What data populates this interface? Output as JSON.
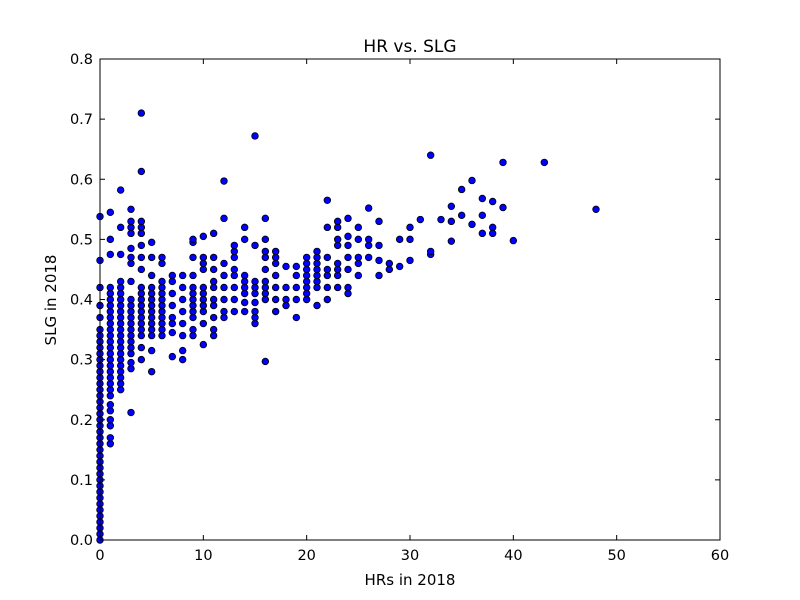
{
  "chart_data": {
    "type": "scatter",
    "title": "HR vs. SLG",
    "xlabel": "HRs in 2018",
    "ylabel": "SLG in 2018",
    "xlim": [
      0,
      60
    ],
    "ylim": [
      0,
      0.8
    ],
    "xticks": [
      "0",
      "10",
      "20",
      "30",
      "40",
      "50",
      "60"
    ],
    "yticks": [
      "0.0",
      "0.1",
      "0.2",
      "0.3",
      "0.4",
      "0.5",
      "0.6",
      "0.7",
      "0.8"
    ],
    "grid": false,
    "legend": "none",
    "marker_color": "#0000ff",
    "marker_edge_color": "#000000",
    "points": [
      [
        0,
        0.0
      ],
      [
        0,
        0.01
      ],
      [
        0,
        0.02
      ],
      [
        0,
        0.03
      ],
      [
        0,
        0.04
      ],
      [
        0,
        0.05
      ],
      [
        0,
        0.06
      ],
      [
        0,
        0.07
      ],
      [
        0,
        0.08
      ],
      [
        0,
        0.09
      ],
      [
        0,
        0.1
      ],
      [
        0,
        0.11
      ],
      [
        0,
        0.12
      ],
      [
        0,
        0.13
      ],
      [
        0,
        0.14
      ],
      [
        0,
        0.15
      ],
      [
        0,
        0.16
      ],
      [
        0,
        0.17
      ],
      [
        0,
        0.18
      ],
      [
        0,
        0.19
      ],
      [
        0,
        0.2
      ],
      [
        0,
        0.21
      ],
      [
        0,
        0.22
      ],
      [
        0,
        0.23
      ],
      [
        0,
        0.24
      ],
      [
        0,
        0.25
      ],
      [
        0,
        0.26
      ],
      [
        0,
        0.27
      ],
      [
        0,
        0.28
      ],
      [
        0,
        0.29
      ],
      [
        0,
        0.3
      ],
      [
        0,
        0.31
      ],
      [
        0,
        0.32
      ],
      [
        0,
        0.33
      ],
      [
        0,
        0.34
      ],
      [
        0,
        0.35
      ],
      [
        0,
        0.37
      ],
      [
        0,
        0.39
      ],
      [
        0,
        0.42
      ],
      [
        0,
        0.465
      ],
      [
        0,
        0.538
      ],
      [
        1,
        0.16
      ],
      [
        1,
        0.17
      ],
      [
        1,
        0.19
      ],
      [
        1,
        0.2
      ],
      [
        1,
        0.215
      ],
      [
        1,
        0.225
      ],
      [
        1,
        0.24
      ],
      [
        1,
        0.25
      ],
      [
        1,
        0.26
      ],
      [
        1,
        0.27
      ],
      [
        1,
        0.28
      ],
      [
        1,
        0.29
      ],
      [
        1,
        0.3
      ],
      [
        1,
        0.31
      ],
      [
        1,
        0.32
      ],
      [
        1,
        0.33
      ],
      [
        1,
        0.34
      ],
      [
        1,
        0.35
      ],
      [
        1,
        0.36
      ],
      [
        1,
        0.37
      ],
      [
        1,
        0.38
      ],
      [
        1,
        0.39
      ],
      [
        1,
        0.4
      ],
      [
        1,
        0.41
      ],
      [
        1,
        0.42
      ],
      [
        1,
        0.475
      ],
      [
        1,
        0.5
      ],
      [
        1,
        0.545
      ],
      [
        2,
        0.25
      ],
      [
        2,
        0.26
      ],
      [
        2,
        0.27
      ],
      [
        2,
        0.28
      ],
      [
        2,
        0.29
      ],
      [
        2,
        0.3
      ],
      [
        2,
        0.31
      ],
      [
        2,
        0.32
      ],
      [
        2,
        0.33
      ],
      [
        2,
        0.34
      ],
      [
        2,
        0.35
      ],
      [
        2,
        0.36
      ],
      [
        2,
        0.37
      ],
      [
        2,
        0.38
      ],
      [
        2,
        0.39
      ],
      [
        2,
        0.4
      ],
      [
        2,
        0.41
      ],
      [
        2,
        0.42
      ],
      [
        2,
        0.43
      ],
      [
        2,
        0.475
      ],
      [
        2,
        0.52
      ],
      [
        2,
        0.582
      ],
      [
        3,
        0.212
      ],
      [
        3,
        0.285
      ],
      [
        3,
        0.295
      ],
      [
        3,
        0.31
      ],
      [
        3,
        0.32
      ],
      [
        3,
        0.33
      ],
      [
        3,
        0.34
      ],
      [
        3,
        0.35
      ],
      [
        3,
        0.36
      ],
      [
        3,
        0.37
      ],
      [
        3,
        0.38
      ],
      [
        3,
        0.39
      ],
      [
        3,
        0.4
      ],
      [
        3,
        0.43
      ],
      [
        3,
        0.46
      ],
      [
        3,
        0.47
      ],
      [
        3,
        0.485
      ],
      [
        3,
        0.51
      ],
      [
        3,
        0.52
      ],
      [
        3,
        0.53
      ],
      [
        3,
        0.55
      ],
      [
        4,
        0.3
      ],
      [
        4,
        0.32
      ],
      [
        4,
        0.34
      ],
      [
        4,
        0.35
      ],
      [
        4,
        0.36
      ],
      [
        4,
        0.37
      ],
      [
        4,
        0.38
      ],
      [
        4,
        0.39
      ],
      [
        4,
        0.4
      ],
      [
        4,
        0.41
      ],
      [
        4,
        0.42
      ],
      [
        4,
        0.45
      ],
      [
        4,
        0.47
      ],
      [
        4,
        0.49
      ],
      [
        4,
        0.51
      ],
      [
        4,
        0.52
      ],
      [
        4,
        0.53
      ],
      [
        4,
        0.613
      ],
      [
        4,
        0.71
      ],
      [
        5,
        0.28
      ],
      [
        5,
        0.315
      ],
      [
        5,
        0.34
      ],
      [
        5,
        0.35
      ],
      [
        5,
        0.36
      ],
      [
        5,
        0.37
      ],
      [
        5,
        0.38
      ],
      [
        5,
        0.39
      ],
      [
        5,
        0.4
      ],
      [
        5,
        0.41
      ],
      [
        5,
        0.42
      ],
      [
        5,
        0.44
      ],
      [
        5,
        0.47
      ],
      [
        5,
        0.495
      ],
      [
        6,
        0.34
      ],
      [
        6,
        0.35
      ],
      [
        6,
        0.36
      ],
      [
        6,
        0.37
      ],
      [
        6,
        0.38
      ],
      [
        6,
        0.39
      ],
      [
        6,
        0.4
      ],
      [
        6,
        0.41
      ],
      [
        6,
        0.42
      ],
      [
        6,
        0.43
      ],
      [
        6,
        0.46
      ],
      [
        6,
        0.47
      ],
      [
        7,
        0.305
      ],
      [
        7,
        0.345
      ],
      [
        7,
        0.36
      ],
      [
        7,
        0.37
      ],
      [
        7,
        0.39
      ],
      [
        7,
        0.41
      ],
      [
        7,
        0.43
      ],
      [
        7,
        0.44
      ],
      [
        8,
        0.3
      ],
      [
        8,
        0.315
      ],
      [
        8,
        0.34
      ],
      [
        8,
        0.36
      ],
      [
        8,
        0.38
      ],
      [
        8,
        0.4
      ],
      [
        8,
        0.42
      ],
      [
        8,
        0.44
      ],
      [
        9,
        0.34
      ],
      [
        9,
        0.35
      ],
      [
        9,
        0.37
      ],
      [
        9,
        0.38
      ],
      [
        9,
        0.39
      ],
      [
        9,
        0.4
      ],
      [
        9,
        0.41
      ],
      [
        9,
        0.42
      ],
      [
        9,
        0.44
      ],
      [
        9,
        0.47
      ],
      [
        9,
        0.495
      ],
      [
        9,
        0.5
      ],
      [
        10,
        0.325
      ],
      [
        10,
        0.36
      ],
      [
        10,
        0.38
      ],
      [
        10,
        0.39
      ],
      [
        10,
        0.4
      ],
      [
        10,
        0.41
      ],
      [
        10,
        0.42
      ],
      [
        10,
        0.45
      ],
      [
        10,
        0.46
      ],
      [
        10,
        0.47
      ],
      [
        10,
        0.505
      ],
      [
        11,
        0.34
      ],
      [
        11,
        0.35
      ],
      [
        11,
        0.37
      ],
      [
        11,
        0.39
      ],
      [
        11,
        0.4
      ],
      [
        11,
        0.42
      ],
      [
        11,
        0.43
      ],
      [
        11,
        0.45
      ],
      [
        11,
        0.47
      ],
      [
        11,
        0.51
      ],
      [
        12,
        0.37
      ],
      [
        12,
        0.38
      ],
      [
        12,
        0.4
      ],
      [
        12,
        0.42
      ],
      [
        12,
        0.44
      ],
      [
        12,
        0.46
      ],
      [
        12,
        0.535
      ],
      [
        12,
        0.597
      ],
      [
        13,
        0.38
      ],
      [
        13,
        0.4
      ],
      [
        13,
        0.42
      ],
      [
        13,
        0.44
      ],
      [
        13,
        0.45
      ],
      [
        13,
        0.47
      ],
      [
        13,
        0.48
      ],
      [
        13,
        0.49
      ],
      [
        14,
        0.38
      ],
      [
        14,
        0.395
      ],
      [
        14,
        0.41
      ],
      [
        14,
        0.42
      ],
      [
        14,
        0.43
      ],
      [
        14,
        0.44
      ],
      [
        14,
        0.5
      ],
      [
        14,
        0.52
      ],
      [
        15,
        0.36
      ],
      [
        15,
        0.37
      ],
      [
        15,
        0.38
      ],
      [
        15,
        0.395
      ],
      [
        15,
        0.41
      ],
      [
        15,
        0.42
      ],
      [
        15,
        0.43
      ],
      [
        15,
        0.49
      ],
      [
        15,
        0.672
      ],
      [
        16,
        0.297
      ],
      [
        16,
        0.4
      ],
      [
        16,
        0.41
      ],
      [
        16,
        0.42
      ],
      [
        16,
        0.43
      ],
      [
        16,
        0.45
      ],
      [
        16,
        0.47
      ],
      [
        16,
        0.48
      ],
      [
        16,
        0.5
      ],
      [
        16,
        0.535
      ],
      [
        17,
        0.38
      ],
      [
        17,
        0.4
      ],
      [
        17,
        0.42
      ],
      [
        17,
        0.44
      ],
      [
        17,
        0.46
      ],
      [
        17,
        0.47
      ],
      [
        17,
        0.48
      ],
      [
        18,
        0.39
      ],
      [
        18,
        0.4
      ],
      [
        18,
        0.42
      ],
      [
        18,
        0.455
      ],
      [
        19,
        0.37
      ],
      [
        19,
        0.4
      ],
      [
        19,
        0.42
      ],
      [
        19,
        0.44
      ],
      [
        19,
        0.455
      ],
      [
        20,
        0.4
      ],
      [
        20,
        0.41
      ],
      [
        20,
        0.42
      ],
      [
        20,
        0.43
      ],
      [
        20,
        0.44
      ],
      [
        20,
        0.45
      ],
      [
        20,
        0.46
      ],
      [
        20,
        0.47
      ],
      [
        21,
        0.39
      ],
      [
        21,
        0.42
      ],
      [
        21,
        0.43
      ],
      [
        21,
        0.44
      ],
      [
        21,
        0.45
      ],
      [
        21,
        0.46
      ],
      [
        21,
        0.47
      ],
      [
        21,
        0.48
      ],
      [
        22,
        0.4
      ],
      [
        22,
        0.42
      ],
      [
        22,
        0.44
      ],
      [
        22,
        0.45
      ],
      [
        22,
        0.47
      ],
      [
        22,
        0.52
      ],
      [
        22,
        0.565
      ],
      [
        23,
        0.42
      ],
      [
        23,
        0.44
      ],
      [
        23,
        0.45
      ],
      [
        23,
        0.46
      ],
      [
        23,
        0.49
      ],
      [
        23,
        0.5
      ],
      [
        23,
        0.52
      ],
      [
        23,
        0.53
      ],
      [
        24,
        0.41
      ],
      [
        24,
        0.42
      ],
      [
        24,
        0.45
      ],
      [
        24,
        0.47
      ],
      [
        24,
        0.49
      ],
      [
        24,
        0.505
      ],
      [
        24,
        0.535
      ],
      [
        25,
        0.44
      ],
      [
        25,
        0.46
      ],
      [
        25,
        0.47
      ],
      [
        25,
        0.5
      ],
      [
        25,
        0.52
      ],
      [
        26,
        0.47
      ],
      [
        26,
        0.49
      ],
      [
        26,
        0.5
      ],
      [
        26,
        0.552
      ],
      [
        27,
        0.44
      ],
      [
        27,
        0.465
      ],
      [
        27,
        0.49
      ],
      [
        27,
        0.53
      ],
      [
        28,
        0.45
      ],
      [
        28,
        0.46
      ],
      [
        29,
        0.455
      ],
      [
        29,
        0.5
      ],
      [
        30,
        0.465
      ],
      [
        30,
        0.5
      ],
      [
        30,
        0.52
      ],
      [
        31,
        0.533
      ],
      [
        32,
        0.475
      ],
      [
        32,
        0.48
      ],
      [
        32,
        0.64
      ],
      [
        33,
        0.533
      ],
      [
        34,
        0.497
      ],
      [
        34,
        0.53
      ],
      [
        34,
        0.555
      ],
      [
        35,
        0.54
      ],
      [
        35,
        0.583
      ],
      [
        36,
        0.525
      ],
      [
        36,
        0.598
      ],
      [
        37,
        0.51
      ],
      [
        37,
        0.54
      ],
      [
        37,
        0.568
      ],
      [
        38,
        0.51
      ],
      [
        38,
        0.52
      ],
      [
        38,
        0.563
      ],
      [
        39,
        0.553
      ],
      [
        39,
        0.628
      ],
      [
        40,
        0.498
      ],
      [
        43,
        0.628
      ],
      [
        48,
        0.55
      ]
    ]
  }
}
